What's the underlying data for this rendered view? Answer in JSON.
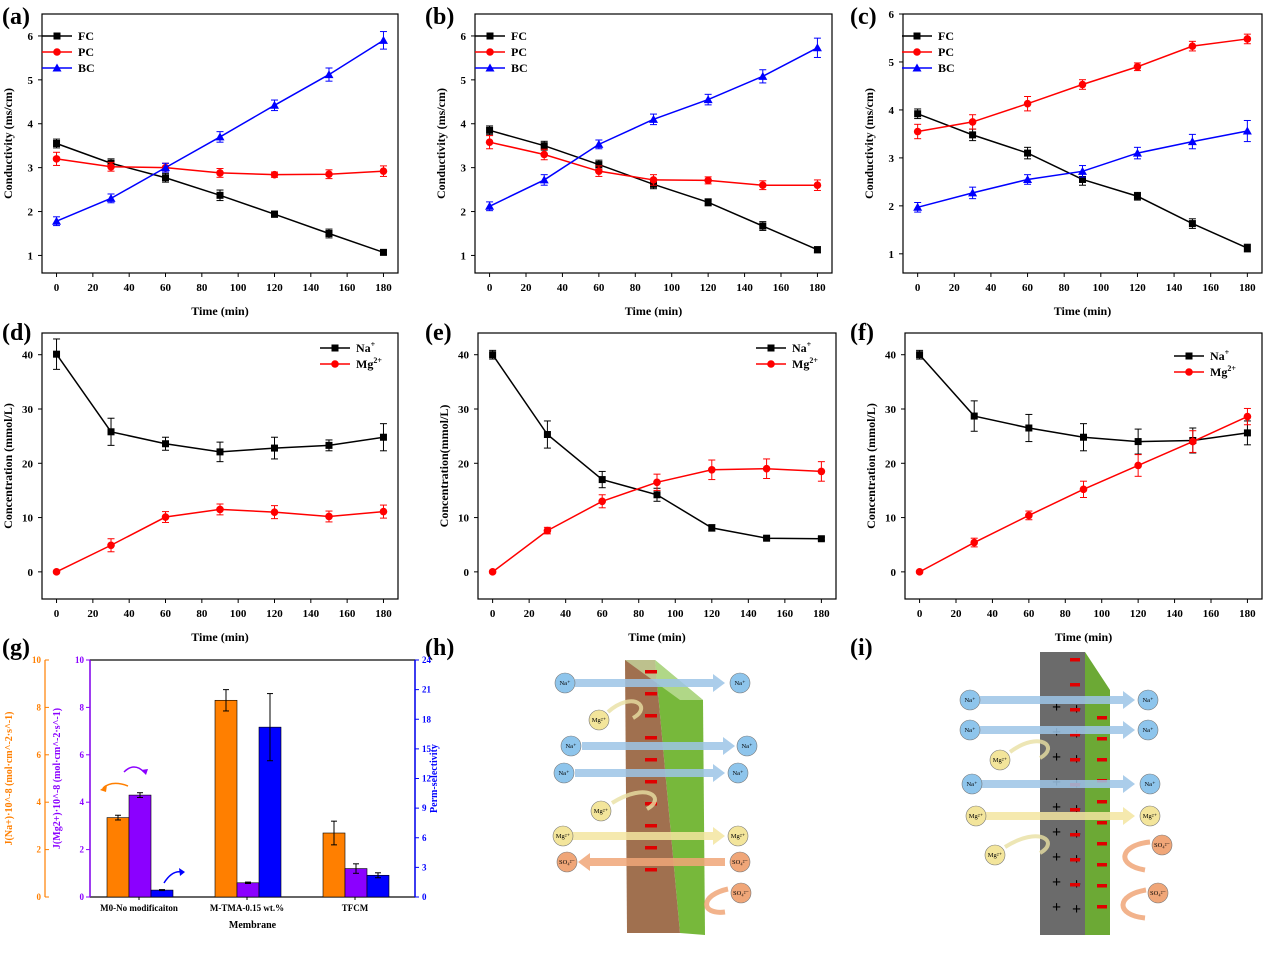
{
  "chart_data": [
    {
      "panel": "(a)",
      "type": "line",
      "x": [
        0,
        30,
        60,
        90,
        120,
        150,
        180
      ],
      "xlabel": "Time (min)",
      "ylabel": "Conductivity (ms/cm)",
      "xlim": [
        -8,
        188
      ],
      "ylim": [
        0.6,
        6.5
      ],
      "xticks": [
        0,
        20,
        40,
        60,
        80,
        100,
        120,
        140,
        160,
        180
      ],
      "yticks": [
        1,
        2,
        3,
        4,
        5,
        6
      ],
      "legend_position": "top-left",
      "series": [
        {
          "name": "FC",
          "color": "#000000",
          "marker": "square",
          "values": [
            3.55,
            3.1,
            2.77,
            2.37,
            1.94,
            1.5,
            1.07
          ],
          "errors": [
            0.1,
            0.1,
            0.1,
            0.12,
            0.07,
            0.1,
            0.05
          ]
        },
        {
          "name": "PC",
          "color": "#ff0000",
          "marker": "circle",
          "values": [
            3.2,
            3.02,
            3.0,
            2.88,
            2.84,
            2.85,
            2.92
          ],
          "errors": [
            0.15,
            0.1,
            0.1,
            0.1,
            0.06,
            0.1,
            0.12
          ]
        },
        {
          "name": "BC",
          "color": "#0000ff",
          "marker": "triangle",
          "values": [
            1.78,
            2.3,
            3.0,
            3.7,
            4.42,
            5.12,
            5.9
          ],
          "errors": [
            0.1,
            0.1,
            0.1,
            0.12,
            0.12,
            0.15,
            0.2
          ]
        }
      ]
    },
    {
      "panel": "(b)",
      "type": "line",
      "x": [
        0,
        30,
        60,
        90,
        120,
        150,
        180
      ],
      "xlabel": "Time (min)",
      "ylabel": "Conductivity (ms/cm)",
      "xlim": [
        -8,
        188
      ],
      "ylim": [
        0.6,
        6.5
      ],
      "xticks": [
        0,
        20,
        40,
        60,
        80,
        100,
        120,
        140,
        160,
        180
      ],
      "yticks": [
        1,
        2,
        3,
        4,
        5,
        6
      ],
      "legend_position": "top-left",
      "series": [
        {
          "name": "FC",
          "color": "#000000",
          "marker": "square",
          "values": [
            3.85,
            3.5,
            3.07,
            2.62,
            2.21,
            1.67,
            1.13
          ],
          "errors": [
            0.1,
            0.1,
            0.1,
            0.1,
            0.08,
            0.1,
            0.07
          ]
        },
        {
          "name": "PC",
          "color": "#ff0000",
          "marker": "circle",
          "values": [
            3.58,
            3.3,
            2.92,
            2.72,
            2.71,
            2.6,
            2.6
          ],
          "errors": [
            0.15,
            0.12,
            0.12,
            0.12,
            0.08,
            0.1,
            0.12
          ]
        },
        {
          "name": "BC",
          "color": "#0000ff",
          "marker": "triangle",
          "values": [
            2.12,
            2.72,
            3.53,
            4.1,
            4.55,
            5.08,
            5.73
          ],
          "errors": [
            0.1,
            0.12,
            0.1,
            0.12,
            0.12,
            0.15,
            0.22
          ]
        }
      ]
    },
    {
      "panel": "(c)",
      "type": "line",
      "x": [
        0,
        30,
        60,
        90,
        120,
        150,
        180
      ],
      "xlabel": "Time (min)",
      "ylabel": "Conductivity (ms/cm)",
      "xlim": [
        -8,
        188
      ],
      "ylim": [
        0.6,
        6.0
      ],
      "xticks": [
        0,
        20,
        40,
        60,
        80,
        100,
        120,
        140,
        160,
        180
      ],
      "yticks": [
        1,
        2,
        3,
        4,
        5,
        6
      ],
      "legend_position": "top-left",
      "series": [
        {
          "name": "FC",
          "color": "#000000",
          "marker": "square",
          "values": [
            3.92,
            3.48,
            3.1,
            2.55,
            2.2,
            1.63,
            1.12
          ],
          "errors": [
            0.1,
            0.12,
            0.12,
            0.12,
            0.08,
            0.1,
            0.08
          ]
        },
        {
          "name": "PC",
          "color": "#ff0000",
          "marker": "circle",
          "values": [
            3.55,
            3.75,
            4.13,
            4.53,
            4.9,
            5.33,
            5.48
          ],
          "errors": [
            0.15,
            0.15,
            0.15,
            0.1,
            0.08,
            0.1,
            0.1
          ]
        },
        {
          "name": "BC",
          "color": "#0000ff",
          "marker": "triangle",
          "values": [
            1.97,
            2.27,
            2.55,
            2.72,
            3.1,
            3.34,
            3.56
          ],
          "errors": [
            0.1,
            0.12,
            0.1,
            0.12,
            0.12,
            0.15,
            0.22
          ]
        }
      ]
    },
    {
      "panel": "(d)",
      "type": "line",
      "x": [
        0,
        30,
        60,
        90,
        120,
        150,
        180
      ],
      "xlabel": "Time (min)",
      "ylabel": "Concentration (mmol/L)",
      "xlim": [
        -8,
        188
      ],
      "ylim": [
        -5,
        44
      ],
      "xticks": [
        0,
        20,
        40,
        60,
        80,
        100,
        120,
        140,
        160,
        180
      ],
      "yticks": [
        0,
        10,
        20,
        30,
        40
      ],
      "legend_position": "top-right",
      "series": [
        {
          "name": "Na+",
          "color": "#000000",
          "marker": "square",
          "values": [
            40.1,
            25.8,
            23.6,
            22.1,
            22.8,
            23.3,
            24.8
          ],
          "errors": [
            2.8,
            2.5,
            1.2,
            1.8,
            2.0,
            1.0,
            2.5
          ]
        },
        {
          "name": "Mg2+",
          "color": "#ff0000",
          "marker": "circle",
          "values": [
            0,
            4.9,
            10.1,
            11.5,
            11.0,
            10.2,
            11.1
          ],
          "errors": [
            0,
            1.2,
            1.0,
            1.0,
            1.2,
            1.0,
            1.2
          ]
        }
      ]
    },
    {
      "panel": "(e)",
      "type": "line",
      "x": [
        0,
        30,
        60,
        90,
        120,
        150,
        180
      ],
      "xlabel": "Time (min)",
      "ylabel": "Concentration(mmol/L)",
      "xlim": [
        -8,
        188
      ],
      "ylim": [
        -5,
        44
      ],
      "xticks": [
        0,
        20,
        40,
        60,
        80,
        100,
        120,
        140,
        160,
        180
      ],
      "yticks": [
        0,
        10,
        20,
        30,
        40
      ],
      "legend_position": "top-right",
      "series": [
        {
          "name": "Na+",
          "color": "#000000",
          "marker": "square",
          "values": [
            40.0,
            25.3,
            17.0,
            14.2,
            8.1,
            6.2,
            6.1
          ],
          "errors": [
            0.8,
            2.5,
            1.5,
            1.2,
            0.6,
            0.3,
            0.3
          ]
        },
        {
          "name": "Mg2+",
          "color": "#ff0000",
          "marker": "circle",
          "values": [
            0,
            7.6,
            13.0,
            16.5,
            18.8,
            19.0,
            18.5
          ],
          "errors": [
            0,
            0.6,
            1.2,
            1.5,
            1.8,
            1.8,
            1.8
          ]
        }
      ]
    },
    {
      "panel": "(f)",
      "type": "line",
      "x": [
        0,
        30,
        60,
        90,
        120,
        150,
        180
      ],
      "xlabel": "Time (min)",
      "ylabel": "Concentration (mmol/L)",
      "xlim": [
        -8,
        188
      ],
      "ylim": [
        -5,
        44
      ],
      "xticks": [
        0,
        20,
        40,
        60,
        80,
        100,
        120,
        140,
        160,
        180
      ],
      "yticks": [
        0,
        10,
        20,
        30,
        40
      ],
      "legend_position": "top-right",
      "series": [
        {
          "name": "Na+",
          "color": "#000000",
          "marker": "square",
          "values": [
            40.0,
            28.7,
            26.5,
            24.8,
            24.0,
            24.2,
            25.6
          ],
          "errors": [
            0.8,
            2.8,
            2.5,
            2.5,
            2.3,
            2.3,
            2.2
          ]
        },
        {
          "name": "Mg2+",
          "color": "#ff0000",
          "marker": "circle",
          "values": [
            0,
            5.4,
            10.4,
            15.2,
            19.6,
            24.0,
            28.6
          ],
          "errors": [
            0,
            0.8,
            0.8,
            1.5,
            2.0,
            2.0,
            1.5
          ]
        }
      ]
    },
    {
      "panel": "(g)",
      "type": "bar",
      "categories": [
        "M0-No modificaiton",
        "M-TMA-0.15 wt.%",
        "TFCM"
      ],
      "xlabel": "Membrane",
      "series": [
        {
          "name": "J(Na+)",
          "axis": "left",
          "color": "#ff7f00",
          "values": [
            3.35,
            8.3,
            2.7
          ],
          "errors": [
            0.1,
            0.45,
            0.5
          ]
        },
        {
          "name": "J(Mg2+)",
          "axis": "middle",
          "color": "#8b00ff",
          "values": [
            4.3,
            0.6,
            1.2
          ],
          "errors": [
            0.1,
            0.03,
            0.2
          ]
        },
        {
          "name": "Perm-selectivity",
          "axis": "right",
          "color": "#0000ff",
          "values": [
            0.7,
            17.2,
            2.2
          ],
          "errors": [
            0.05,
            3.4,
            0.25
          ]
        }
      ],
      "axes": {
        "left": {
          "label": "J(Na+)·10^-8 (mol·cm^-2·s^-1)",
          "ylim": [
            0,
            10
          ],
          "ticks": [
            0,
            2,
            4,
            6,
            8,
            10
          ],
          "color": "#ff7f00"
        },
        "middle": {
          "label": "J(Mg2+)·10^-8 (mol·cm^-2·s^-1)",
          "ylim": [
            0,
            10
          ],
          "ticks": [
            0,
            2,
            4,
            6,
            8,
            10
          ],
          "color": "#8b00ff"
        },
        "right": {
          "label": "Perm-selectivity",
          "ylim": [
            0,
            24
          ],
          "ticks": [
            0,
            3,
            6,
            9,
            12,
            15,
            18,
            21,
            24
          ],
          "color": "#0000ff"
        }
      }
    }
  ],
  "panel_labels": [
    "(a)",
    "(b)",
    "(c)",
    "(d)",
    "(e)",
    "(f)",
    "(g)",
    "(h)",
    "(i)"
  ],
  "schematics": {
    "h": {
      "ions": [
        {
          "label": "Na⁺",
          "color": "#8ec5ec",
          "direction": "through"
        },
        {
          "label": "Mg²⁺",
          "color": "#f3e59b",
          "direction": "rejected"
        },
        {
          "label": "Na⁺",
          "color": "#8ec5ec",
          "direction": "through"
        },
        {
          "label": "Na⁺",
          "color": "#8ec5ec",
          "direction": "through"
        },
        {
          "label": "Mg²⁺",
          "color": "#f3e59b",
          "direction": "rejected"
        },
        {
          "label": "Mg²⁺",
          "color": "#f3e59b",
          "direction": "through"
        },
        {
          "label": "SO₄²⁻",
          "color": "#f0a678",
          "direction": "back"
        },
        {
          "label": "SO₄²⁻",
          "color": "#f0a678",
          "direction": "rejected"
        }
      ],
      "membrane_color": "#a0704f",
      "layer_color": "#77b83b",
      "charge": "−"
    },
    "i": {
      "ions": [
        {
          "label": "Na⁺",
          "color": "#8ec5ec",
          "direction": "through"
        },
        {
          "label": "Na⁺",
          "color": "#8ec5ec",
          "direction": "through"
        },
        {
          "label": "Mg²⁺",
          "color": "#f3e59b",
          "direction": "rejected"
        },
        {
          "label": "Na⁺",
          "color": "#8ec5ec",
          "direction": "through"
        },
        {
          "label": "Mg²⁺",
          "color": "#f3e59b",
          "direction": "through"
        },
        {
          "label": "Mg²⁺",
          "color": "#f3e59b",
          "direction": "rejected"
        },
        {
          "label": "SO₄²⁻",
          "color": "#f0a678",
          "direction": "rejected"
        },
        {
          "label": "SO₄²⁻",
          "color": "#f0a678",
          "direction": "rejected"
        }
      ],
      "membrane_color": "#6b6b6b",
      "layer_color": "#77b83b",
      "charge_core": "+",
      "charge_layer": "−"
    }
  }
}
